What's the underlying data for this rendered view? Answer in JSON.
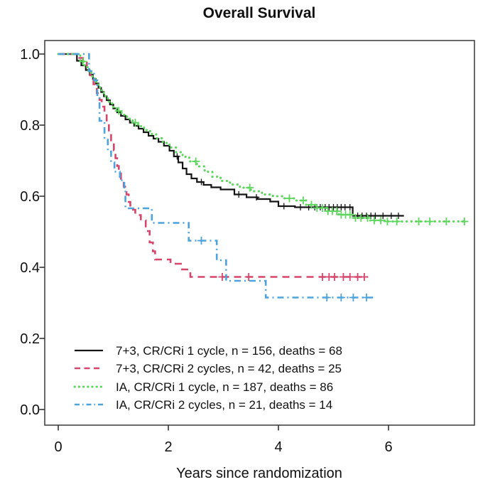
{
  "chart_data": {
    "type": "line",
    "subtype": "kaplan-meier-step",
    "title": "Overall Survival",
    "xlabel": "Years since randomization",
    "ylabel": "",
    "xlim": [
      0,
      7.6
    ],
    "ylim": [
      0.0,
      1.0
    ],
    "xticks": [
      0,
      2,
      4,
      6
    ],
    "yticks": [
      0.0,
      0.2,
      0.4,
      0.6,
      0.8,
      1.0
    ],
    "xtick_labels": [
      "0",
      "2",
      "4",
      "6"
    ],
    "ytick_labels": [
      "1.0",
      "0.8",
      "0.6",
      "0.4",
      "0.2",
      "0.0"
    ],
    "grid": false,
    "legend_position": "inside-bottom-left",
    "series": [
      {
        "name": "7+3, CR/CRi 1 cycle, n = 156, deaths = 68",
        "arm": "7+3",
        "cycles": 1,
        "n": 156,
        "deaths": 68,
        "color": "#151515",
        "style": "solid",
        "points": [
          [
            0,
            1.0
          ],
          [
            0.34,
            0.981
          ],
          [
            0.42,
            0.968
          ],
          [
            0.5,
            0.955
          ],
          [
            0.57,
            0.942
          ],
          [
            0.63,
            0.93
          ],
          [
            0.68,
            0.917
          ],
          [
            0.73,
            0.905
          ],
          [
            0.78,
            0.893
          ],
          [
            0.83,
            0.881
          ],
          [
            0.88,
            0.87
          ],
          [
            0.94,
            0.858
          ],
          [
            1.0,
            0.847
          ],
          [
            1.07,
            0.836
          ],
          [
            1.14,
            0.826
          ],
          [
            1.22,
            0.816
          ],
          [
            1.3,
            0.807
          ],
          [
            1.38,
            0.798
          ],
          [
            1.46,
            0.79
          ],
          [
            1.55,
            0.78
          ],
          [
            1.64,
            0.77
          ],
          [
            1.73,
            0.762
          ],
          [
            1.82,
            0.753
          ],
          [
            1.92,
            0.742
          ],
          [
            2.02,
            0.728
          ],
          [
            2.1,
            0.712
          ],
          [
            2.18,
            0.695
          ],
          [
            2.26,
            0.678
          ],
          [
            2.33,
            0.662
          ],
          [
            2.42,
            0.65
          ],
          [
            2.52,
            0.64
          ],
          [
            2.64,
            0.632
          ],
          [
            2.78,
            0.625
          ],
          [
            2.95,
            0.619
          ],
          [
            3.2,
            0.605
          ],
          [
            3.42,
            0.597
          ],
          [
            3.62,
            0.592
          ],
          [
            3.85,
            0.585
          ],
          [
            4.0,
            0.572
          ],
          [
            4.3,
            0.569
          ],
          [
            5.35,
            0.545
          ],
          [
            6.28,
            0.545
          ]
        ],
        "censor_times": [
          2.16,
          2.6,
          3.28,
          3.6,
          4.1,
          4.4,
          4.55,
          4.66,
          4.76,
          4.85,
          4.92,
          5.0,
          5.07,
          5.14,
          5.21,
          5.3,
          5.44,
          5.52,
          5.6,
          5.68,
          5.76,
          5.9,
          6.05,
          6.18
        ]
      },
      {
        "name": "7+3, CR/CRi 2 cycles, n = 42, deaths = 25",
        "arm": "7+3",
        "cycles": 2,
        "n": 42,
        "deaths": 25,
        "color": "#D6456C",
        "style": "dashed",
        "points": [
          [
            0,
            1.0
          ],
          [
            0.36,
            0.989
          ],
          [
            0.45,
            0.976
          ],
          [
            0.52,
            0.963
          ],
          [
            0.58,
            0.94
          ],
          [
            0.64,
            0.915
          ],
          [
            0.7,
            0.89
          ],
          [
            0.75,
            0.871
          ],
          [
            0.79,
            0.852
          ],
          [
            0.84,
            0.828
          ],
          [
            0.88,
            0.804
          ],
          [
            0.92,
            0.779
          ],
          [
            0.96,
            0.754
          ],
          [
            1.01,
            0.729
          ],
          [
            1.04,
            0.707
          ],
          [
            1.07,
            0.685
          ],
          [
            1.1,
            0.667
          ],
          [
            1.14,
            0.649
          ],
          [
            1.19,
            0.627
          ],
          [
            1.24,
            0.605
          ],
          [
            1.28,
            0.584
          ],
          [
            1.31,
            0.562
          ],
          [
            1.4,
            0.547
          ],
          [
            1.5,
            0.532
          ],
          [
            1.59,
            0.502
          ],
          [
            1.66,
            0.47
          ],
          [
            1.72,
            0.445
          ],
          [
            1.76,
            0.422
          ],
          [
            2.04,
            0.41
          ],
          [
            2.25,
            0.394
          ],
          [
            2.4,
            0.373
          ],
          [
            5.62,
            0.373
          ]
        ],
        "censor_times": [
          2.98,
          3.46,
          4.8,
          4.92,
          5.02,
          5.18,
          5.3,
          5.44,
          5.56
        ]
      },
      {
        "name": "IA, CR/CRi 1 cycle, n = 187, deaths = 86",
        "arm": "IA",
        "cycles": 1,
        "n": 187,
        "deaths": 86,
        "color": "#5CD65C",
        "style": "dotted",
        "points": [
          [
            0,
            1.0
          ],
          [
            0.4,
            0.979
          ],
          [
            0.48,
            0.963
          ],
          [
            0.55,
            0.947
          ],
          [
            0.62,
            0.931
          ],
          [
            0.69,
            0.914
          ],
          [
            0.76,
            0.898
          ],
          [
            0.83,
            0.882
          ],
          [
            0.9,
            0.866
          ],
          [
            0.98,
            0.851
          ],
          [
            1.06,
            0.84
          ],
          [
            1.15,
            0.829
          ],
          [
            1.25,
            0.818
          ],
          [
            1.35,
            0.807
          ],
          [
            1.45,
            0.797
          ],
          [
            1.56,
            0.786
          ],
          [
            1.67,
            0.775
          ],
          [
            1.78,
            0.763
          ],
          [
            1.9,
            0.75
          ],
          [
            2.02,
            0.737
          ],
          [
            2.14,
            0.724
          ],
          [
            2.26,
            0.711
          ],
          [
            2.38,
            0.698
          ],
          [
            2.52,
            0.684
          ],
          [
            2.66,
            0.669
          ],
          [
            2.8,
            0.655
          ],
          [
            2.95,
            0.643
          ],
          [
            3.12,
            0.633
          ],
          [
            3.3,
            0.624
          ],
          [
            3.5,
            0.614
          ],
          [
            3.7,
            0.605
          ],
          [
            3.9,
            0.6
          ],
          [
            4.1,
            0.594
          ],
          [
            4.3,
            0.588
          ],
          [
            4.5,
            0.576
          ],
          [
            4.7,
            0.567
          ],
          [
            4.9,
            0.558
          ],
          [
            5.1,
            0.548
          ],
          [
            5.35,
            0.539
          ],
          [
            5.65,
            0.532
          ],
          [
            5.95,
            0.529
          ],
          [
            7.42,
            0.529
          ]
        ],
        "censor_times": [
          0.45,
          1.1,
          1.4,
          2.5,
          3.48,
          4.2,
          4.45,
          4.6,
          4.7,
          4.8,
          4.9,
          4.98,
          5.06,
          5.14,
          5.22,
          5.3,
          5.4,
          5.5,
          5.62,
          5.74,
          5.86,
          5.98,
          6.15,
          6.55,
          6.75,
          7.05,
          7.38
        ]
      },
      {
        "name": "IA, CR/CRi 2 cycles, n = 21, deaths = 14",
        "arm": "IA",
        "cycles": 2,
        "n": 21,
        "deaths": 14,
        "color": "#4DA3DC",
        "style": "dashdot",
        "points": [
          [
            0,
            1.0
          ],
          [
            0.56,
            0.952
          ],
          [
            0.65,
            0.926
          ],
          [
            0.71,
            0.879
          ],
          [
            0.75,
            0.812
          ],
          [
            0.84,
            0.762
          ],
          [
            0.9,
            0.726
          ],
          [
            0.96,
            0.695
          ],
          [
            1.02,
            0.669
          ],
          [
            1.12,
            0.645
          ],
          [
            1.2,
            0.62
          ],
          [
            1.22,
            0.566
          ],
          [
            1.7,
            0.525
          ],
          [
            2.37,
            0.475
          ],
          [
            2.88,
            0.42
          ],
          [
            3.05,
            0.362
          ],
          [
            3.77,
            0.315
          ],
          [
            5.72,
            0.315
          ]
        ],
        "censor_times": [
          2.6,
          4.88,
          5.14,
          5.36,
          5.6
        ]
      }
    ]
  }
}
